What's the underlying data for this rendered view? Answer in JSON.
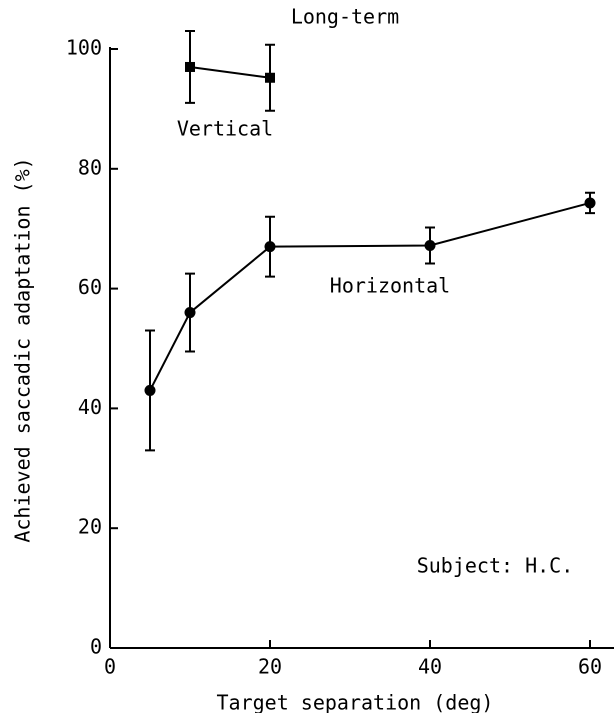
{
  "chart_data": {
    "type": "line",
    "x_label": "Target separation (deg)",
    "y_label": "Achieved saccadic adaptation (%)",
    "annotations": [
      "Long-term",
      "Vertical",
      "Horizontal",
      "Subject: H.C."
    ],
    "xlim": [
      0,
      63
    ],
    "xticks": [
      0,
      20,
      40,
      60
    ],
    "ylim": [
      0,
      100
    ],
    "yticks": [
      0,
      20,
      40,
      60,
      80,
      100
    ],
    "grid": false,
    "series": [
      {
        "name": "Horizontal",
        "color": "#000000",
        "marker": "circle",
        "x": [
          5,
          10,
          20,
          40,
          60
        ],
        "values": [
          43,
          56,
          67,
          67.2,
          74.3
        ],
        "errors": [
          10,
          6.5,
          5,
          3,
          1.7
        ]
      },
      {
        "name": "Vertical",
        "color": "#000000",
        "marker": "square",
        "x": [
          10,
          20
        ],
        "values": [
          97,
          95.2
        ],
        "errors": [
          6,
          5.5
        ]
      }
    ]
  }
}
